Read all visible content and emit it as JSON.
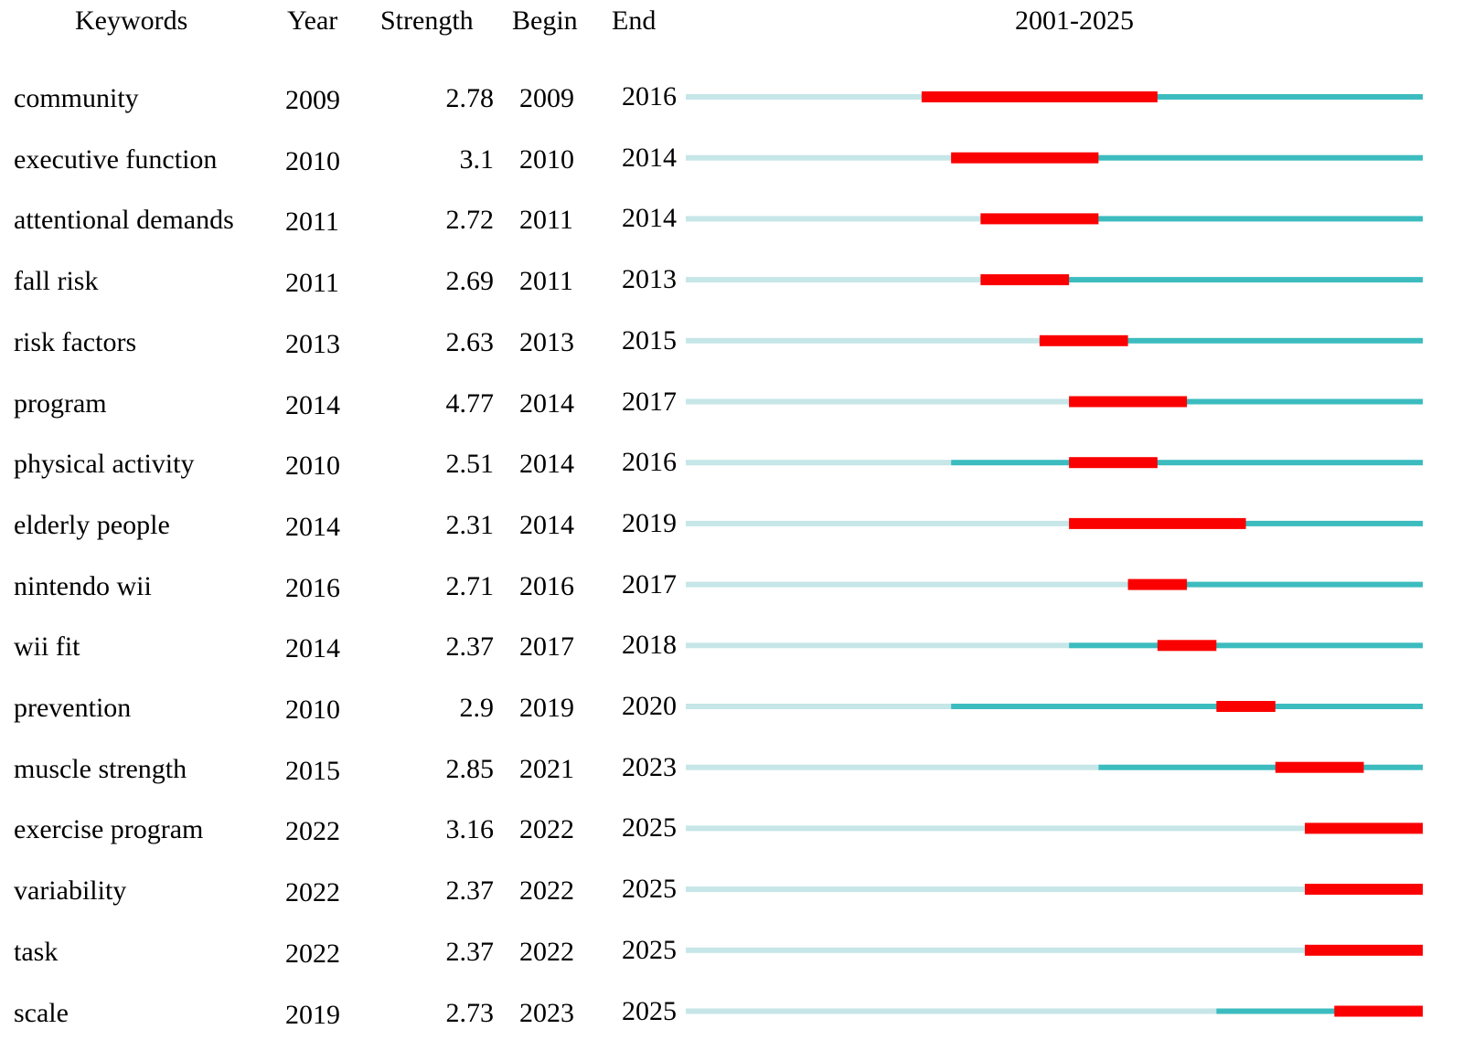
{
  "header": {
    "keywords": "Keywords",
    "year": "Year",
    "strength": "Strength",
    "begin": "Begin",
    "end": "End",
    "range": "2001-2025"
  },
  "chart_data": {
    "type": "table",
    "timeline_start": 2001,
    "timeline_end": 2025,
    "colors": {
      "before": "#c6e6e8",
      "active": "#3cbcbf",
      "burst": "#fb0000"
    },
    "rows": [
      {
        "keyword": "community",
        "year": "2009",
        "strength": "2.78",
        "begin": "2009",
        "end": "2016"
      },
      {
        "keyword": "executive function",
        "year": "2010",
        "strength": "3.1",
        "begin": "2010",
        "end": "2014"
      },
      {
        "keyword": "attentional demands",
        "year": "2011",
        "strength": "2.72",
        "begin": "2011",
        "end": "2014"
      },
      {
        "keyword": "fall risk",
        "year": "2011",
        "strength": "2.69",
        "begin": "2011",
        "end": "2013"
      },
      {
        "keyword": "risk factors",
        "year": "2013",
        "strength": "2.63",
        "begin": "2013",
        "end": "2015"
      },
      {
        "keyword": "program",
        "year": "2014",
        "strength": "4.77",
        "begin": "2014",
        "end": "2017"
      },
      {
        "keyword": "physical activity",
        "year": "2010",
        "strength": "2.51",
        "begin": "2014",
        "end": "2016"
      },
      {
        "keyword": "elderly people",
        "year": "2014",
        "strength": "2.31",
        "begin": "2014",
        "end": "2019"
      },
      {
        "keyword": "nintendo wii",
        "year": "2016",
        "strength": "2.71",
        "begin": "2016",
        "end": "2017"
      },
      {
        "keyword": "wii fit",
        "year": "2014",
        "strength": "2.37",
        "begin": "2017",
        "end": "2018"
      },
      {
        "keyword": "prevention",
        "year": "2010",
        "strength": "2.9",
        "begin": "2019",
        "end": "2020"
      },
      {
        "keyword": "muscle strength",
        "year": "2015",
        "strength": "2.85",
        "begin": "2021",
        "end": "2023"
      },
      {
        "keyword": "exercise program",
        "year": "2022",
        "strength": "3.16",
        "begin": "2022",
        "end": "2025"
      },
      {
        "keyword": "variability",
        "year": "2022",
        "strength": "2.37",
        "begin": "2022",
        "end": "2025"
      },
      {
        "keyword": "task",
        "year": "2022",
        "strength": "2.37",
        "begin": "2022",
        "end": "2025"
      },
      {
        "keyword": "scale",
        "year": "2019",
        "strength": "2.73",
        "begin": "2023",
        "end": "2025"
      }
    ]
  }
}
